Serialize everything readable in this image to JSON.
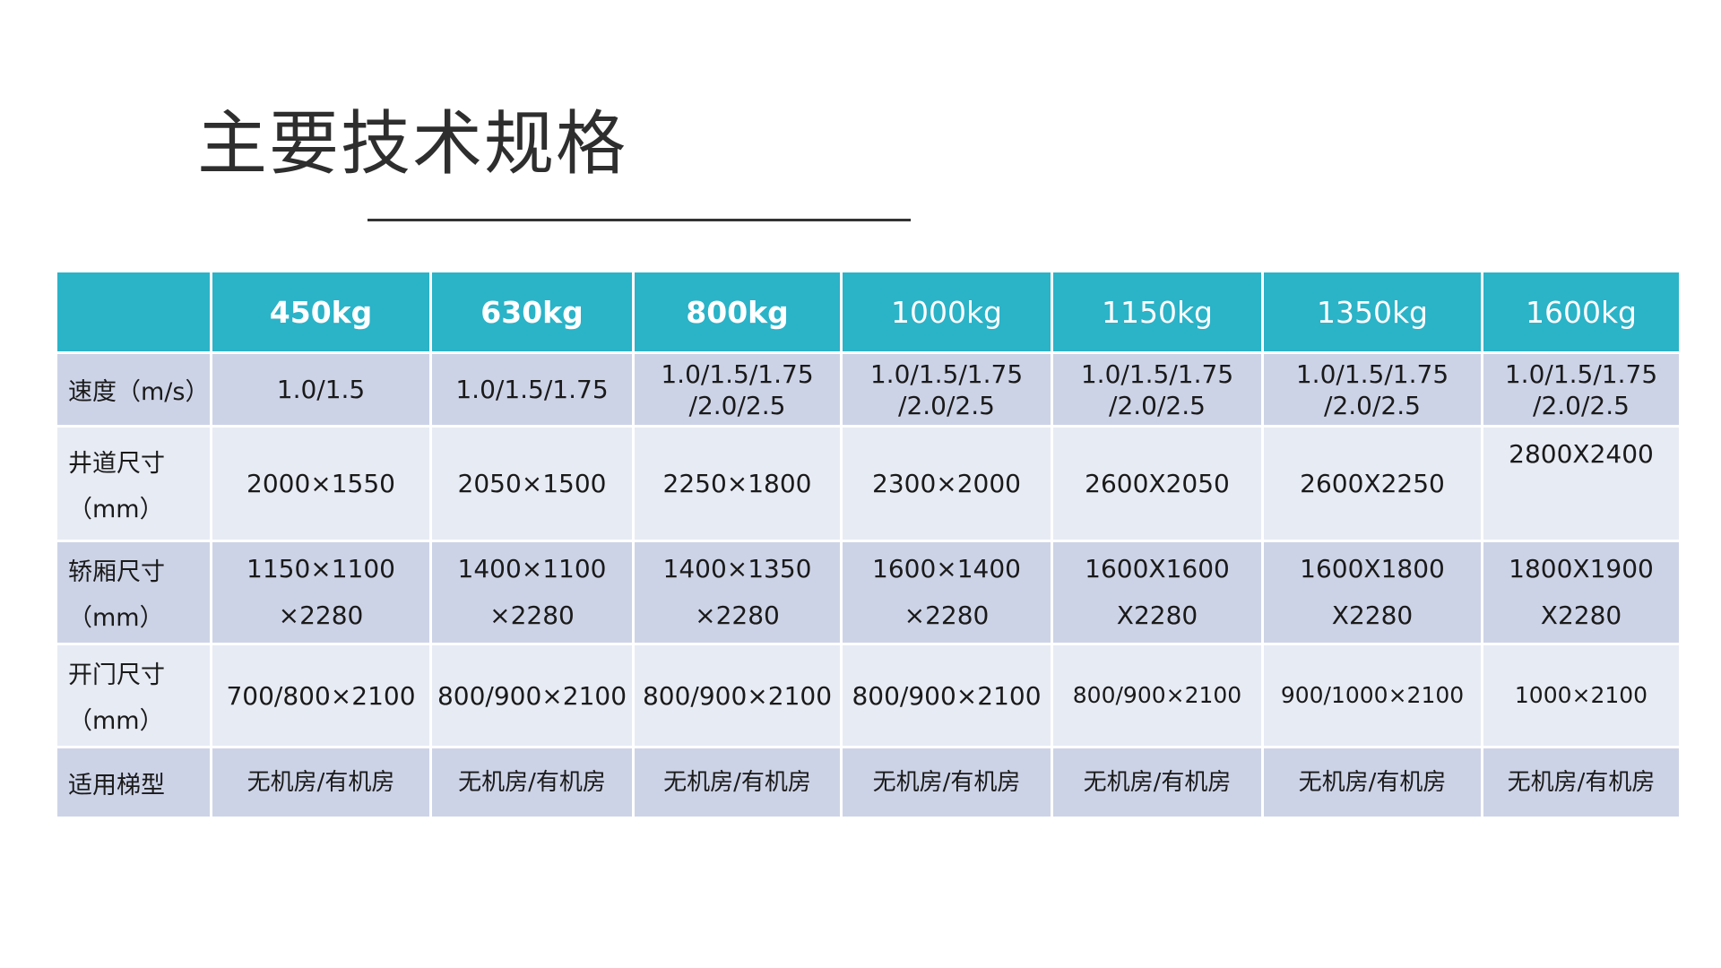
{
  "title": "主要技术规格",
  "colors": {
    "header_bg": "#2bb3c8",
    "row_dark": "#cdd3e7",
    "row_light": "#e7ebf4"
  },
  "columns": [
    "450kg",
    "630kg",
    "800kg",
    "1000kg",
    "1150kg",
    "1350kg",
    "1600kg"
  ],
  "rows": [
    {
      "label": [
        "速度（m/s）"
      ],
      "cells": [
        [
          "1.0/1.5"
        ],
        [
          "1.0/1.5/1.75"
        ],
        [
          "1.0/1.5/1.75",
          "/2.0/2.5"
        ],
        [
          "1.0/1.5/1.75",
          "/2.0/2.5"
        ],
        [
          "1.0/1.5/1.75",
          "/2.0/2.5"
        ],
        [
          "1.0/1.5/1.75",
          "/2.0/2.5"
        ],
        [
          "1.0/1.5/1.75",
          "/2.0/2.5"
        ]
      ]
    },
    {
      "label": [
        "井道尺寸",
        "（mm）"
      ],
      "cells": [
        [
          "2000×1550"
        ],
        [
          "2050×1500"
        ],
        [
          "2250×1800"
        ],
        [
          "2300×2000"
        ],
        [
          "2600X2050"
        ],
        [
          "2600X2250"
        ],
        [
          "2800X2400"
        ]
      ]
    },
    {
      "label": [
        "轿厢尺寸",
        "（mm）"
      ],
      "cells": [
        [
          "1150×1100",
          "×2280"
        ],
        [
          "1400×1100",
          "×2280"
        ],
        [
          "1400×1350",
          "×2280"
        ],
        [
          "1600×1400",
          "×2280"
        ],
        [
          "1600X1600",
          "X2280"
        ],
        [
          "1600X1800",
          "X2280"
        ],
        [
          "1800X1900",
          "X2280"
        ]
      ]
    },
    {
      "label": [
        "开门尺寸",
        "（mm）"
      ],
      "cells": [
        [
          "700/800×2100"
        ],
        [
          "800/900×2100"
        ],
        [
          "800/900×2100"
        ],
        [
          "800/900×2100"
        ],
        [
          "800/900×2100"
        ],
        [
          "900/1000×2100"
        ],
        [
          "1000×2100"
        ]
      ]
    },
    {
      "label": [
        "适用梯型"
      ],
      "cells": [
        [
          "无机房/有机房"
        ],
        [
          "无机房/有机房"
        ],
        [
          "无机房/有机房"
        ],
        [
          "无机房/有机房"
        ],
        [
          "无机房/有机房"
        ],
        [
          "无机房/有机房"
        ],
        [
          "无机房/有机房"
        ]
      ]
    }
  ]
}
